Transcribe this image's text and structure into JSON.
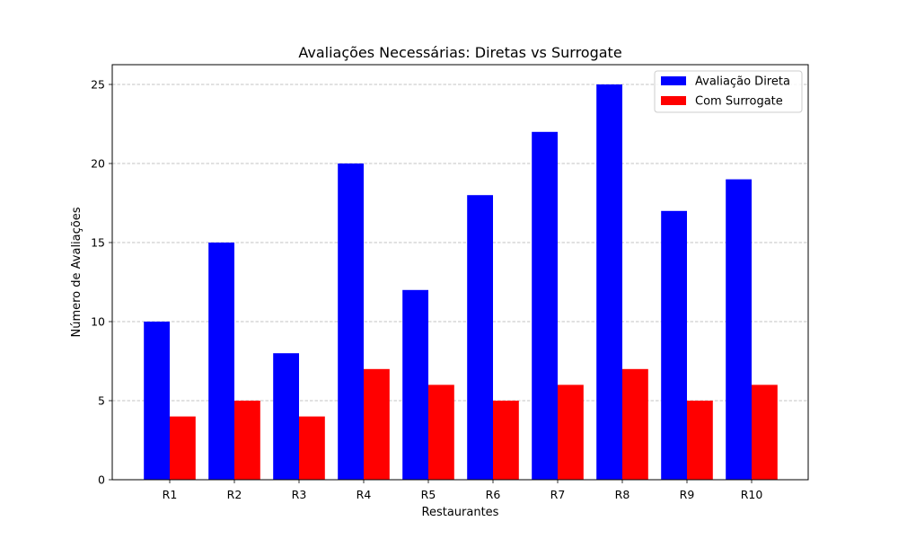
{
  "chart_data": {
    "type": "bar",
    "title": "Avaliações Necessárias: Diretas vs Surrogate",
    "xlabel": "Restaurantes",
    "ylabel": "Número de Avaliações",
    "categories": [
      "R1",
      "R2",
      "R3",
      "R4",
      "R5",
      "R6",
      "R7",
      "R8",
      "R9",
      "R10"
    ],
    "series": [
      {
        "name": "Avaliação Direta",
        "color": "#0000ff",
        "values": [
          10,
          15,
          8,
          20,
          12,
          18,
          22,
          25,
          17,
          19
        ]
      },
      {
        "name": "Com Surrogate",
        "color": "#ff0000",
        "values": [
          4,
          5,
          4,
          7,
          6,
          5,
          6,
          7,
          5,
          6
        ]
      }
    ],
    "ylim": [
      0,
      26.25
    ],
    "yticks": [
      0,
      5,
      10,
      15,
      20,
      25
    ],
    "grid": "y-dashed",
    "legend_position": "top-right"
  }
}
